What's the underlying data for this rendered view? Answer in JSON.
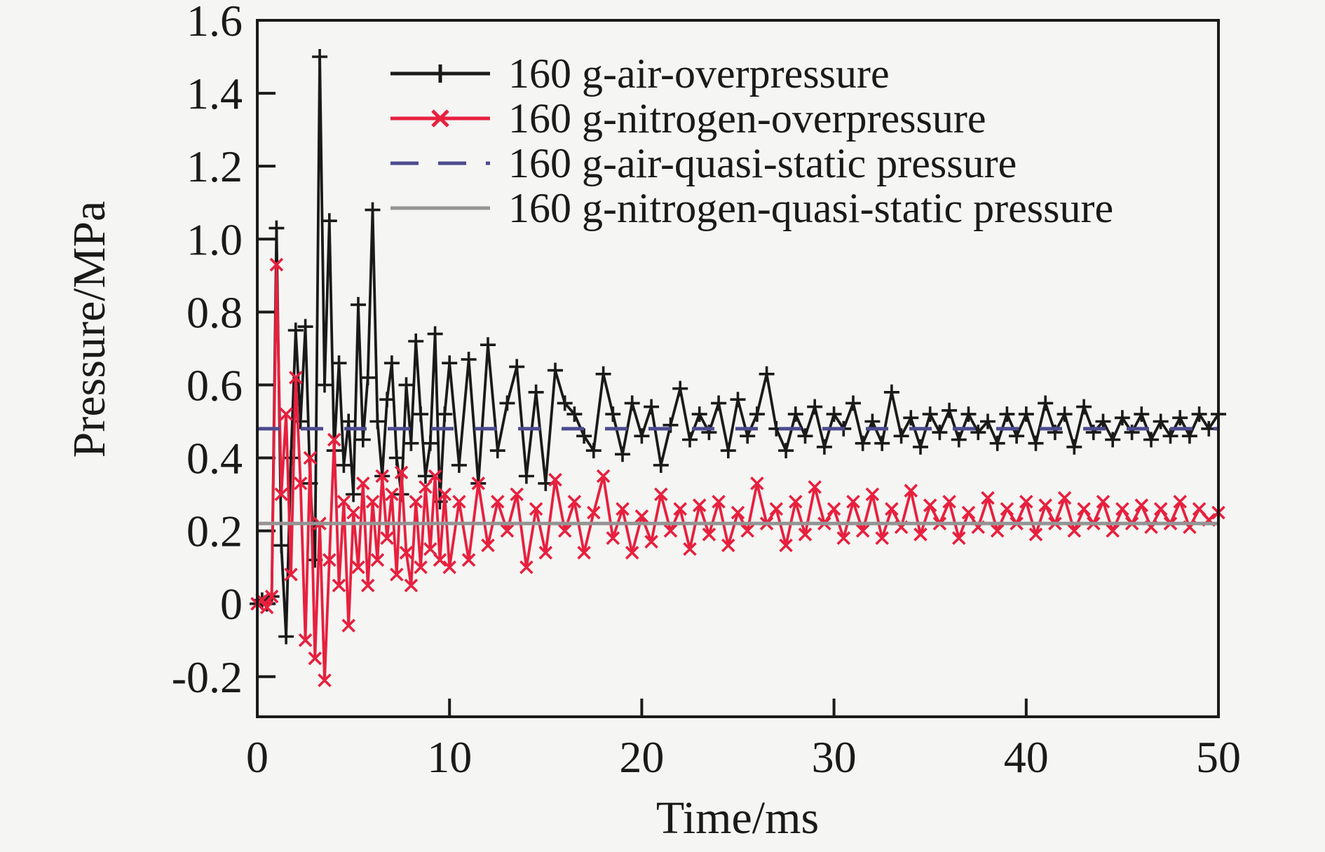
{
  "figure": {
    "background_color": "#f5f5f3",
    "axis_color": "#1a1a1a"
  },
  "chart_data": {
    "type": "line",
    "title": "",
    "xlabel": "Time/ms",
    "ylabel": "Pressure/MPa",
    "xlim": [
      0,
      50
    ],
    "ylim": [
      -0.31,
      1.6
    ],
    "xticks": [
      0,
      10,
      20,
      30,
      40,
      50
    ],
    "xtick_labels": [
      "0",
      "10",
      "20",
      "30",
      "40",
      "50"
    ],
    "ytick_values": [
      -0.2,
      0,
      0.2,
      0.4,
      0.6,
      0.8,
      1.0,
      1.2,
      1.4,
      1.6
    ],
    "ytick_labels": [
      "-0.2",
      "0",
      "0.2",
      "0.4",
      "0.6",
      "0.8",
      "1.0",
      "1.2",
      "1.4",
      "1.6"
    ],
    "grid": false,
    "legend_position": "upper-left-inside, no frame",
    "series": [
      {
        "id": "air-overpressure",
        "name": "160 g-air-overpressure",
        "color": "#1a1a1a",
        "line": "solid",
        "marker": "plus",
        "points": [
          [
            0,
            0
          ],
          [
            0.25,
            0.01
          ],
          [
            0.5,
            0
          ],
          [
            0.75,
            0.02
          ],
          [
            1,
            1.03
          ],
          [
            1.25,
            0.16
          ],
          [
            1.5,
            -0.09
          ],
          [
            1.75,
            0.4
          ],
          [
            2,
            0.75
          ],
          [
            2.25,
            0.5
          ],
          [
            2.5,
            0.76
          ],
          [
            2.75,
            0.33
          ],
          [
            3,
            0.12
          ],
          [
            3.25,
            1.5
          ],
          [
            3.5,
            0.6
          ],
          [
            3.75,
            1.05
          ],
          [
            4,
            0.42
          ],
          [
            4.25,
            0.66
          ],
          [
            4.5,
            0.38
          ],
          [
            4.75,
            0.5
          ],
          [
            5,
            0.3
          ],
          [
            5.25,
            0.82
          ],
          [
            5.5,
            0.45
          ],
          [
            5.75,
            0.62
          ],
          [
            6,
            1.08
          ],
          [
            6.25,
            0.5
          ],
          [
            6.5,
            0.35
          ],
          [
            6.75,
            0.56
          ],
          [
            7,
            0.66
          ],
          [
            7.25,
            0.4
          ],
          [
            7.5,
            0.3
          ],
          [
            7.75,
            0.6
          ],
          [
            8,
            0.44
          ],
          [
            8.25,
            0.72
          ],
          [
            8.5,
            0.52
          ],
          [
            8.75,
            0.35
          ],
          [
            9,
            0.44
          ],
          [
            9.25,
            0.74
          ],
          [
            9.5,
            0.28
          ],
          [
            9.75,
            0.52
          ],
          [
            10,
            0.66
          ],
          [
            10.5,
            0.38
          ],
          [
            11,
            0.67
          ],
          [
            11.5,
            0.33
          ],
          [
            12,
            0.71
          ],
          [
            12.5,
            0.42
          ],
          [
            13,
            0.55
          ],
          [
            13.5,
            0.65
          ],
          [
            14,
            0.35
          ],
          [
            14.5,
            0.58
          ],
          [
            15,
            0.33
          ],
          [
            15.5,
            0.64
          ],
          [
            16,
            0.55
          ],
          [
            16.5,
            0.52
          ],
          [
            17,
            0.46
          ],
          [
            17.5,
            0.42
          ],
          [
            18,
            0.63
          ],
          [
            18.5,
            0.52
          ],
          [
            19,
            0.41
          ],
          [
            19.5,
            0.55
          ],
          [
            20,
            0.46
          ],
          [
            20.5,
            0.54
          ],
          [
            21,
            0.38
          ],
          [
            21.5,
            0.49
          ],
          [
            22,
            0.59
          ],
          [
            22.5,
            0.45
          ],
          [
            23,
            0.52
          ],
          [
            23.5,
            0.47
          ],
          [
            24,
            0.55
          ],
          [
            24.5,
            0.42
          ],
          [
            25,
            0.56
          ],
          [
            25.5,
            0.46
          ],
          [
            26,
            0.52
          ],
          [
            26.5,
            0.63
          ],
          [
            27,
            0.48
          ],
          [
            27.5,
            0.42
          ],
          [
            28,
            0.52
          ],
          [
            28.5,
            0.46
          ],
          [
            29,
            0.54
          ],
          [
            29.5,
            0.43
          ],
          [
            30,
            0.52
          ],
          [
            30.5,
            0.48
          ],
          [
            31,
            0.55
          ],
          [
            31.5,
            0.44
          ],
          [
            32,
            0.5
          ],
          [
            32.5,
            0.44
          ],
          [
            33,
            0.58
          ],
          [
            33.5,
            0.46
          ],
          [
            34,
            0.51
          ],
          [
            34.5,
            0.43
          ],
          [
            35,
            0.52
          ],
          [
            35.5,
            0.47
          ],
          [
            36,
            0.53
          ],
          [
            36.5,
            0.45
          ],
          [
            37,
            0.52
          ],
          [
            37.5,
            0.47
          ],
          [
            38,
            0.5
          ],
          [
            38.5,
            0.44
          ],
          [
            39,
            0.52
          ],
          [
            39.5,
            0.46
          ],
          [
            40,
            0.52
          ],
          [
            40.5,
            0.44
          ],
          [
            41,
            0.55
          ],
          [
            41.5,
            0.47
          ],
          [
            42,
            0.52
          ],
          [
            42.5,
            0.43
          ],
          [
            43,
            0.54
          ],
          [
            43.5,
            0.47
          ],
          [
            44,
            0.5
          ],
          [
            44.5,
            0.45
          ],
          [
            45,
            0.51
          ],
          [
            45.5,
            0.47
          ],
          [
            46,
            0.52
          ],
          [
            46.5,
            0.45
          ],
          [
            47,
            0.5
          ],
          [
            47.5,
            0.46
          ],
          [
            48,
            0.51
          ],
          [
            48.5,
            0.46
          ],
          [
            49,
            0.52
          ],
          [
            49.5,
            0.48
          ],
          [
            50,
            0.52
          ]
        ]
      },
      {
        "id": "nitrogen-overpressure",
        "name": "160 g-nitrogen-overpressure",
        "color": "#e7203e",
        "line": "solid",
        "marker": "x",
        "points": [
          [
            0,
            0
          ],
          [
            0.25,
            0.01
          ],
          [
            0.5,
            -0.01
          ],
          [
            0.75,
            0.02
          ],
          [
            1,
            0.93
          ],
          [
            1.25,
            0.3
          ],
          [
            1.5,
            0.52
          ],
          [
            1.75,
            0.08
          ],
          [
            2,
            0.62
          ],
          [
            2.25,
            0.33
          ],
          [
            2.5,
            -0.1
          ],
          [
            2.75,
            0.4
          ],
          [
            3,
            -0.15
          ],
          [
            3.25,
            0.22
          ],
          [
            3.5,
            -0.21
          ],
          [
            3.75,
            0.12
          ],
          [
            4,
            0.45
          ],
          [
            4.25,
            0.05
          ],
          [
            4.5,
            0.28
          ],
          [
            4.75,
            -0.06
          ],
          [
            5,
            0.25
          ],
          [
            5.25,
            0.1
          ],
          [
            5.5,
            0.33
          ],
          [
            5.75,
            0.05
          ],
          [
            6,
            0.28
          ],
          [
            6.25,
            0.12
          ],
          [
            6.5,
            0.35
          ],
          [
            6.75,
            0.18
          ],
          [
            7,
            0.3
          ],
          [
            7.25,
            0.08
          ],
          [
            7.5,
            0.36
          ],
          [
            7.75,
            0.14
          ],
          [
            8,
            0.05
          ],
          [
            8.25,
            0.28
          ],
          [
            8.5,
            0.1
          ],
          [
            8.75,
            0.32
          ],
          [
            9,
            0.15
          ],
          [
            9.25,
            0.35
          ],
          [
            9.5,
            0.12
          ],
          [
            9.75,
            0.3
          ],
          [
            10,
            0.1
          ],
          [
            10.5,
            0.28
          ],
          [
            11,
            0.12
          ],
          [
            11.5,
            0.33
          ],
          [
            12,
            0.16
          ],
          [
            12.5,
            0.28
          ],
          [
            13,
            0.2
          ],
          [
            13.5,
            0.3
          ],
          [
            14,
            0.1
          ],
          [
            14.5,
            0.26
          ],
          [
            15,
            0.14
          ],
          [
            15.5,
            0.34
          ],
          [
            16,
            0.2
          ],
          [
            16.5,
            0.28
          ],
          [
            17,
            0.14
          ],
          [
            17.5,
            0.25
          ],
          [
            18,
            0.35
          ],
          [
            18.5,
            0.18
          ],
          [
            19,
            0.26
          ],
          [
            19.5,
            0.14
          ],
          [
            20,
            0.24
          ],
          [
            20.5,
            0.17
          ],
          [
            21,
            0.3
          ],
          [
            21.5,
            0.2
          ],
          [
            22,
            0.26
          ],
          [
            22.5,
            0.15
          ],
          [
            23,
            0.27
          ],
          [
            23.5,
            0.19
          ],
          [
            24,
            0.28
          ],
          [
            24.5,
            0.16
          ],
          [
            25,
            0.25
          ],
          [
            25.5,
            0.2
          ],
          [
            26,
            0.33
          ],
          [
            26.5,
            0.22
          ],
          [
            27,
            0.26
          ],
          [
            27.5,
            0.16
          ],
          [
            28,
            0.28
          ],
          [
            28.5,
            0.19
          ],
          [
            29,
            0.32
          ],
          [
            29.5,
            0.22
          ],
          [
            30,
            0.26
          ],
          [
            30.5,
            0.18
          ],
          [
            31,
            0.28
          ],
          [
            31.5,
            0.2
          ],
          [
            32,
            0.3
          ],
          [
            32.5,
            0.18
          ],
          [
            33,
            0.26
          ],
          [
            33.5,
            0.21
          ],
          [
            34,
            0.31
          ],
          [
            34.5,
            0.19
          ],
          [
            35,
            0.27
          ],
          [
            35.5,
            0.22
          ],
          [
            36,
            0.28
          ],
          [
            36.5,
            0.18
          ],
          [
            37,
            0.25
          ],
          [
            37.5,
            0.21
          ],
          [
            38,
            0.29
          ],
          [
            38.5,
            0.2
          ],
          [
            39,
            0.26
          ],
          [
            39.5,
            0.22
          ],
          [
            40,
            0.28
          ],
          [
            40.5,
            0.19
          ],
          [
            41,
            0.27
          ],
          [
            41.5,
            0.22
          ],
          [
            42,
            0.29
          ],
          [
            42.5,
            0.2
          ],
          [
            43,
            0.26
          ],
          [
            43.5,
            0.22
          ],
          [
            44,
            0.28
          ],
          [
            44.5,
            0.2
          ],
          [
            45,
            0.26
          ],
          [
            45.5,
            0.22
          ],
          [
            46,
            0.27
          ],
          [
            46.5,
            0.21
          ],
          [
            47,
            0.26
          ],
          [
            47.5,
            0.22
          ],
          [
            48,
            0.28
          ],
          [
            48.5,
            0.21
          ],
          [
            49,
            0.26
          ],
          [
            49.5,
            0.23
          ],
          [
            50,
            0.25
          ]
        ]
      },
      {
        "id": "air-quasi-static",
        "name": "160 g-air-quasi-static pressure",
        "color": "#4c4a8f",
        "line": "dashed",
        "marker": "none",
        "type": "hline",
        "value": 0.48
      },
      {
        "id": "nitrogen-quasi-static",
        "name": "160 g-nitrogen-quasi-static pressure",
        "color": "#949494",
        "line": "solid",
        "marker": "none",
        "type": "hline",
        "value": 0.22
      }
    ]
  }
}
